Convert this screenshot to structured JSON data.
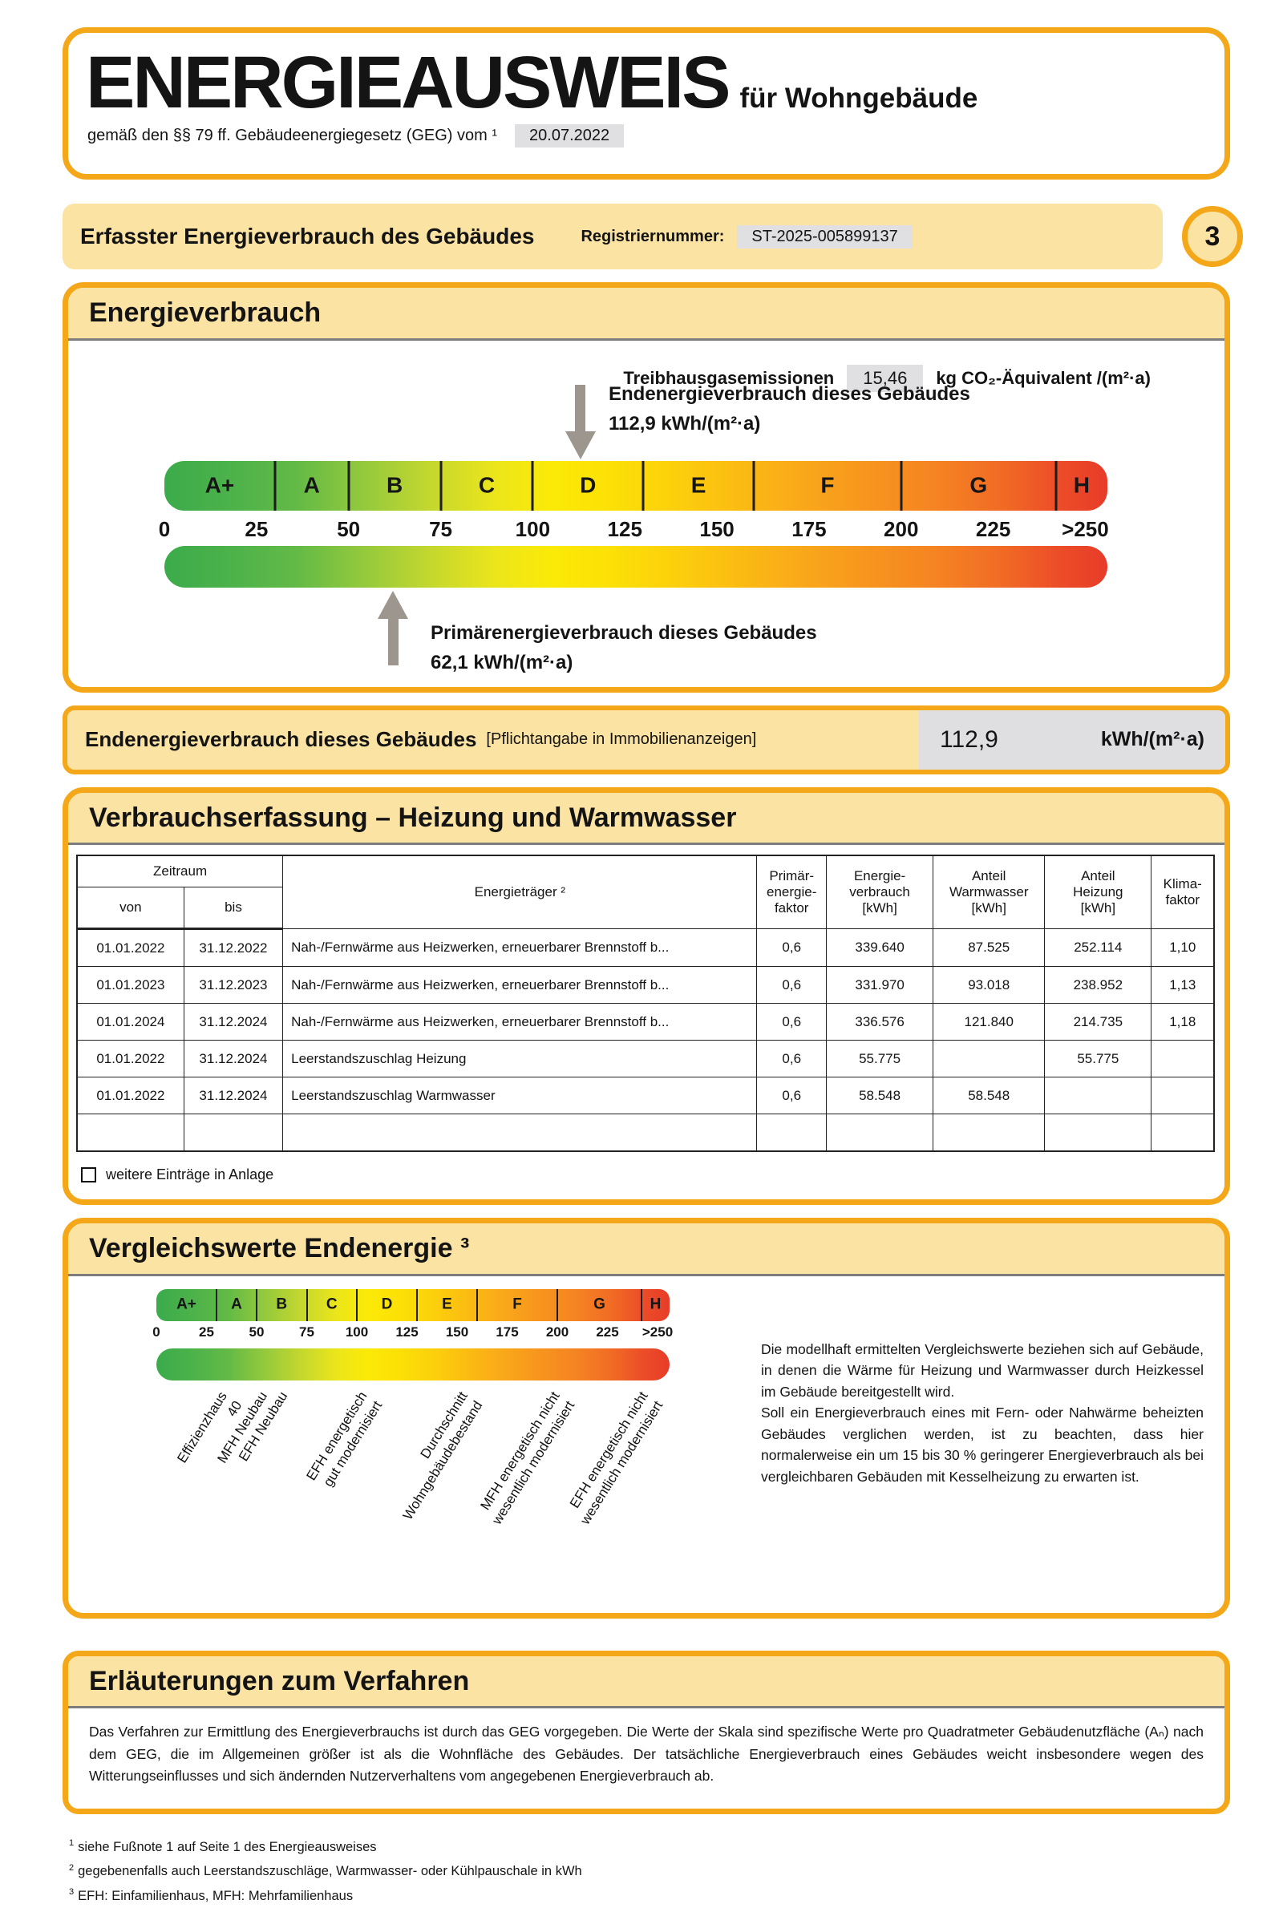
{
  "header": {
    "title": "ENERGIEAUSWEIS",
    "subtitle": "für Wohngebäude",
    "law_text": "gemäß den §§ 79 ff. Gebäudeenergiegesetz (GEG) vom ¹",
    "law_date": "20.07.2022"
  },
  "banner": {
    "title": "Erfasster Energieverbrauch des Gebäudes",
    "registration_label": "Registriernummer:",
    "registration_number": "ST-2025-005899137",
    "page_number": "3"
  },
  "consumption": {
    "section_title": "Energieverbrauch",
    "ghg_label": "Treibhausgasemissionen",
    "ghg_value": "15,46",
    "ghg_unit": "kg CO₂-Äquivalent /(m²·a)",
    "end_energy_title": "Endenergieverbrauch dieses Gebäudes",
    "end_energy_value": "112,9 kWh/(m²·a)",
    "primary_energy_title": "Primärenergieverbrauch dieses Gebäudes",
    "primary_energy_value": "62,1 kWh/(m²·a)"
  },
  "scale": {
    "classes": [
      "A+",
      "A",
      "B",
      "C",
      "D",
      "E",
      "F",
      "G",
      "H"
    ],
    "class_bounds": [
      0,
      30,
      50,
      75,
      100,
      130,
      160,
      200,
      242,
      256
    ],
    "max": 256,
    "ticks": [
      {
        "label": "0",
        "value": 0
      },
      {
        "label": "25",
        "value": 25
      },
      {
        "label": "50",
        "value": 50
      },
      {
        "label": "75",
        "value": 75
      },
      {
        "label": "100",
        "value": 100
      },
      {
        "label": "125",
        "value": 125
      },
      {
        "label": "150",
        "value": 150
      },
      {
        "label": "175",
        "value": 175
      },
      {
        "label": "200",
        "value": 200
      },
      {
        "label": "225",
        "value": 225
      },
      {
        "label": ">250",
        "value": 250
      }
    ],
    "markers": {
      "end_energy": 112.9,
      "primary_energy": 62.1
    }
  },
  "end_energy_bar": {
    "title": "Endenergieverbrauch dieses Gebäudes",
    "note": "[Pflichtangabe in Immobilienanzeigen]",
    "value": "112,9",
    "unit": "kWh/(m²·a)"
  },
  "table_section": {
    "title": "Verbrauchserfassung – Heizung und Warmwasser",
    "header": {
      "zeitraum": "Zeitraum",
      "von": "von",
      "bis": "bis",
      "energietraeger": "Energieträger ²",
      "primaerfaktor": "Primär-\nenergie-\nfaktor",
      "energieverbrauch": "Energie-\nverbrauch\n[kWh]",
      "anteil_warmwasser": "Anteil\nWarmwasser\n[kWh]",
      "anteil_heizung": "Anteil\nHeizung\n[kWh]",
      "klimafaktor": "Klima-\nfaktor"
    },
    "rows": [
      [
        "01.01.2022",
        "31.12.2022",
        "Nah-/Fernwärme aus Heizwerken, erneuerbarer Brennstoff b...",
        "0,6",
        "339.640",
        "87.525",
        "252.114",
        "1,10"
      ],
      [
        "01.01.2023",
        "31.12.2023",
        "Nah-/Fernwärme aus Heizwerken, erneuerbarer Brennstoff b...",
        "0,6",
        "331.970",
        "93.018",
        "238.952",
        "1,13"
      ],
      [
        "01.01.2024",
        "31.12.2024",
        "Nah-/Fernwärme aus Heizwerken, erneuerbarer Brennstoff b...",
        "0,6",
        "336.576",
        "121.840",
        "214.735",
        "1,18"
      ],
      [
        "01.01.2022",
        "31.12.2024",
        "Leerstandszuschlag Heizung",
        "0,6",
        "55.775",
        "",
        "55.775",
        ""
      ],
      [
        "01.01.2022",
        "31.12.2024",
        "Leerstandszuschlag Warmwasser",
        "0,6",
        "58.548",
        "58.548",
        "",
        ""
      ],
      [
        "",
        "",
        "",
        "",
        "",
        "",
        "",
        ""
      ]
    ],
    "checkbox_label": "weitere Einträge in Anlage"
  },
  "comparison": {
    "title": "Vergleichswerte Endenergie ³",
    "reference_labels": [
      {
        "text": "Effizienzhaus 40",
        "value": 30
      },
      {
        "text": "MFH Neubau",
        "value": 50
      },
      {
        "text": "EFH Neubau",
        "value": 60
      },
      {
        "text": "EFH energetisch\ngut modernisiert",
        "value": 100
      },
      {
        "text": "Durchschnitt\nWohngebäudebestand",
        "value": 150
      },
      {
        "text": "MFH energetisch nicht\nwesentlich modernisiert",
        "value": 196
      },
      {
        "text": "EFH energetisch nicht\nwesentlich modernisiert",
        "value": 240
      }
    ],
    "note_paragraphs": [
      "Die modellhaft ermittelten Vergleichswerte beziehen sich auf Gebäude, in denen die Wärme für Heizung und Warmwasser durch Heizkessel im Gebäude bereitgestellt wird.",
      "Soll ein Energieverbrauch eines mit Fern- oder Nahwärme beheizten Gebäudes verglichen werden, ist zu beachten, dass hier normalerweise ein um 15 bis 30 % geringerer Energieverbrauch als bei vergleichbaren Gebäuden mit Kesselheizung zu erwarten ist."
    ]
  },
  "explanation": {
    "title": "Erläuterungen zum Verfahren",
    "text": "Das Verfahren zur Ermittlung des Energieverbrauchs ist durch das GEG vorgegeben. Die Werte der Skala sind spezifische Werte pro Quadratmeter Gebäudenutzfläche (Aₙ) nach dem GEG, die im Allgemeinen größer ist als die Wohnfläche des Gebäudes. Der tatsächliche Energieverbrauch eines Gebäudes weicht insbesondere wegen des Witterungseinflusses und sich ändernden Nutzerverhaltens vom angegebenen Energieverbrauch ab.",
    "footnotes": [
      {
        "marker": "1",
        "text": "siehe Fußnote 1 auf Seite 1 des Energieausweises"
      },
      {
        "marker": "2",
        "text": "gegebenenfalls auch Leerstandszuschläge, Warmwasser- oder Kühlpauschale in kWh"
      },
      {
        "marker": "3",
        "text": "EFH: Einfamilienhaus, MFH: Mehrfamilienhaus"
      }
    ]
  },
  "colors": {
    "frame_orange": "#F4A819",
    "strip_amber": "#FBE3A3",
    "value_box_gray": "#E0E0E2",
    "arrow_gray": "#9C968F",
    "scale_green": "#3BAB4B",
    "scale_yellow": "#FBEA07",
    "scale_red": "#E73C29"
  }
}
